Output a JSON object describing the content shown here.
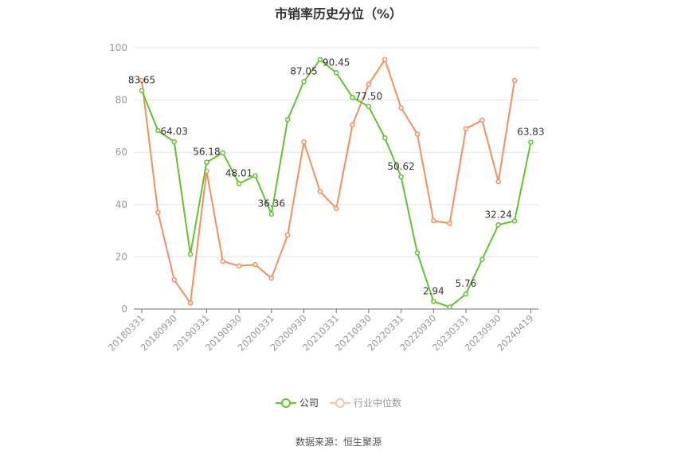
{
  "title": "市销率历史分位（%）",
  "source": "数据来源：恒生聚源",
  "colors": {
    "company": "#5dc72b",
    "industry": "#f88f5b",
    "grid": "#e0e6f1",
    "axis": "#6e7079",
    "tick": "#999999"
  },
  "legend": [
    {
      "label": "公司",
      "color": "#5dc72b"
    },
    {
      "label": "行业中位数",
      "color": "#f88f5b"
    }
  ],
  "chart_data": {
    "type": "line",
    "title": "市销率历史分位（%）",
    "xlabel": "",
    "ylabel": "",
    "ylim": [
      0,
      100
    ],
    "yticks": [
      0,
      20,
      40,
      60,
      80,
      100
    ],
    "grid": true,
    "legend_position": "bottom",
    "x": [
      "20180331",
      "20180630",
      "20180930",
      "20181231",
      "20190331",
      "20190630",
      "20190930",
      "20191231",
      "20200331",
      "20200630",
      "20200930",
      "20201231",
      "20210331",
      "20210630",
      "20210930",
      "20211231",
      "20220331",
      "20220630",
      "20220930",
      "20221231",
      "20230331",
      "20230630",
      "20230930",
      "20231231",
      "20240419"
    ],
    "xtick_labels": [
      "20180331",
      "20180930",
      "20190331",
      "20190930",
      "20200331",
      "20200930",
      "20210331",
      "20210930",
      "20220331",
      "20220930",
      "20230331",
      "20230930",
      "20240419"
    ],
    "series": [
      {
        "name": "公司",
        "color": "#5dc72b",
        "values": [
          83.65,
          68.3,
          64.03,
          21.0,
          56.18,
          59.8,
          48.01,
          51.0,
          36.36,
          72.5,
          87.05,
          95.5,
          90.45,
          81.0,
          77.5,
          65.5,
          50.62,
          21.5,
          2.94,
          0.8,
          5.76,
          19.0,
          32.24,
          33.7,
          63.83
        ],
        "labels": {
          "0": "83.65",
          "2": "64.03",
          "4": "56.18",
          "6": "48.01",
          "8": "36.36",
          "10": "87.05",
          "12": "90.45",
          "14": "77.50",
          "16": "50.62",
          "18": "2.94",
          "20": "5.76",
          "22": "32.24",
          "24": "63.83"
        }
      },
      {
        "name": "行业中位数",
        "color": "#f88f5b",
        "values": [
          87.5,
          37.0,
          11.2,
          2.3,
          52.8,
          18.3,
          16.5,
          17.0,
          11.8,
          28.3,
          64.0,
          45.0,
          38.5,
          70.5,
          86.0,
          95.5,
          77.0,
          67.0,
          33.8,
          32.8,
          69.0,
          72.3,
          48.8,
          87.5,
          null
        ]
      }
    ]
  }
}
